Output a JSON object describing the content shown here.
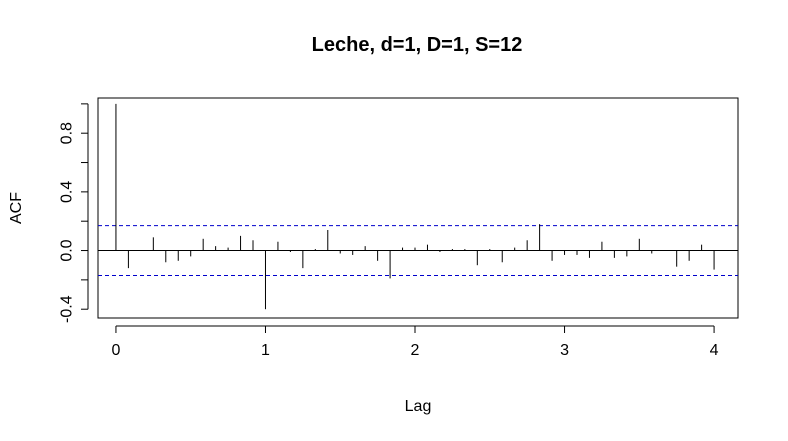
{
  "chart_data": {
    "type": "acf",
    "title": "Leche, d=1, D=1, S=12",
    "xlabel": "Lag",
    "ylabel": "ACF",
    "xlim": [
      -0.12,
      4.16
    ],
    "ylim": [
      -0.46,
      1.04
    ],
    "x_ticks": [
      "0",
      "1",
      "2",
      "3",
      "4"
    ],
    "y_ticks": [
      "-0.4",
      "0.0",
      "0.4",
      "0.8"
    ],
    "confidence_band": 0.17,
    "confidence_color": "#0000CC",
    "lag_step": 0.083333,
    "acf_values": [
      1.0,
      -0.12,
      0.0,
      0.09,
      -0.08,
      -0.07,
      -0.04,
      0.08,
      0.03,
      0.02,
      0.1,
      0.07,
      -0.4,
      0.06,
      -0.01,
      -0.12,
      0.01,
      0.14,
      -0.02,
      -0.03,
      0.03,
      -0.07,
      -0.19,
      0.02,
      0.02,
      0.04,
      -0.01,
      0.01,
      0.01,
      -0.1,
      0.01,
      -0.08,
      0.02,
      0.07,
      0.18,
      -0.07,
      -0.03,
      -0.03,
      -0.05,
      0.06,
      -0.05,
      -0.04,
      0.08,
      -0.02,
      0.0,
      -0.11,
      -0.07,
      0.04,
      -0.13
    ]
  }
}
